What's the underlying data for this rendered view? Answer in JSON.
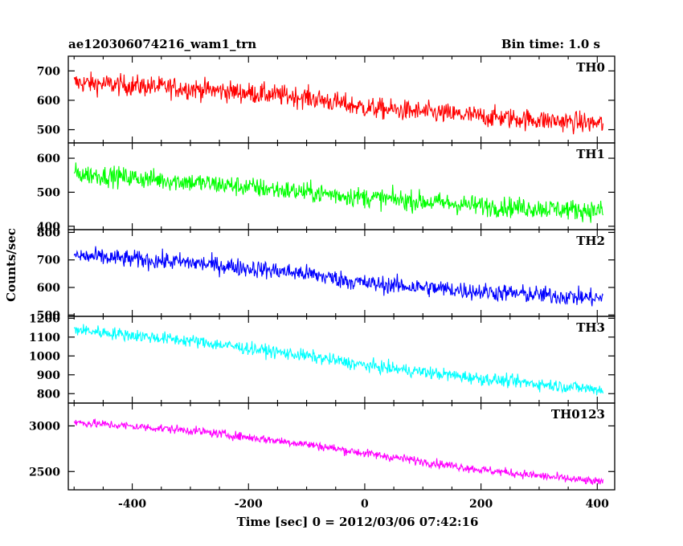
{
  "chart_data": {
    "type": "line",
    "title": "ae120306074216_wam1_trn",
    "bin_time_label": "Bin time: 1.0 s",
    "xlabel": "Time [sec] 0 = 2012/03/06 07:42:16",
    "ylabel": "Counts/sec",
    "xlim": [
      -510,
      430
    ],
    "x_ticks": [
      -400,
      -200,
      0,
      200,
      400
    ],
    "x_range_data": [
      -500,
      410
    ],
    "panels": [
      {
        "name": "TH0",
        "color": "#ff0000",
        "ylim": [
          455,
          750
        ],
        "y_ticks": [
          500,
          600,
          700
        ],
        "trend": [
          [
            -500,
            660
          ],
          [
            -300,
            640
          ],
          [
            -100,
            610
          ],
          [
            0,
            575
          ],
          [
            200,
            545
          ],
          [
            410,
            520
          ]
        ],
        "noise": 30
      },
      {
        "name": "TH1",
        "color": "#00ff00",
        "ylim": [
          390,
          645
        ],
        "y_ticks": [
          400,
          500,
          600
        ],
        "trend": [
          [
            -500,
            555
          ],
          [
            -300,
            530
          ],
          [
            -100,
            500
          ],
          [
            0,
            485
          ],
          [
            200,
            460
          ],
          [
            410,
            445
          ]
        ],
        "noise": 25
      },
      {
        "name": "TH2",
        "color": "#0000ff",
        "ylim": [
          495,
          810
        ],
        "y_ticks": [
          500,
          600,
          700,
          800
        ],
        "trend": [
          [
            -500,
            715
          ],
          [
            -300,
            690
          ],
          [
            -100,
            650
          ],
          [
            0,
            615
          ],
          [
            200,
            585
          ],
          [
            410,
            560
          ]
        ],
        "noise": 27
      },
      {
        "name": "TH3",
        "color": "#00ffff",
        "ylim": [
          750,
          1210
        ],
        "y_ticks": [
          800,
          900,
          1000,
          1100,
          1200
        ],
        "trend": [
          [
            -500,
            1140
          ],
          [
            -300,
            1080
          ],
          [
            -100,
            1000
          ],
          [
            0,
            950
          ],
          [
            200,
            880
          ],
          [
            410,
            820
          ]
        ],
        "noise": 28
      },
      {
        "name": "TH0123",
        "color": "#ff00ff",
        "ylim": [
          2300,
          3250
        ],
        "y_ticks": [
          2500,
          3000
        ],
        "trend": [
          [
            -500,
            3040
          ],
          [
            -300,
            2950
          ],
          [
            -100,
            2800
          ],
          [
            0,
            2700
          ],
          [
            200,
            2520
          ],
          [
            410,
            2380
          ]
        ],
        "noise": 40
      }
    ]
  }
}
